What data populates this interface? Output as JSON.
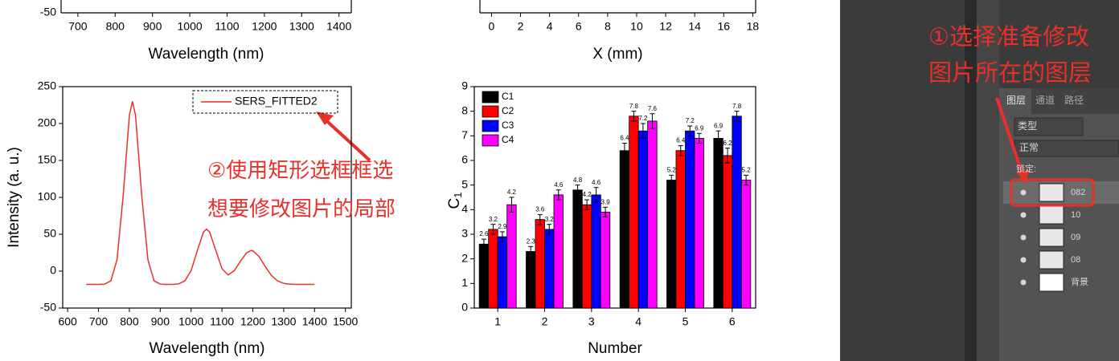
{
  "charts": [
    {
      "type": "axis",
      "yticks": [
        -50
      ],
      "xlim": [
        655,
        1433
      ],
      "xticks": [
        700,
        800,
        900,
        1000,
        1100,
        1200,
        1300,
        1400
      ],
      "x_label": "Wavelength (nm)"
    },
    {
      "type": "axis",
      "xlim": [
        -0.8,
        18.2
      ],
      "xticks": [
        0,
        2,
        4,
        6,
        8,
        10,
        12,
        14,
        16,
        18
      ],
      "x_label": "X (mm)"
    },
    {
      "type": "line",
      "x_label": "Wavelength (nm)",
      "y_label": "Intensity (a. u.)",
      "xlim": [
        584,
        1519
      ],
      "xticks": [
        600,
        700,
        800,
        900,
        1000,
        1100,
        1200,
        1300,
        1400,
        1500
      ],
      "ylim": [
        -50,
        250
      ],
      "yticks": [
        -50,
        0,
        50,
        100,
        150,
        200,
        250
      ],
      "legend": "top-right",
      "series": [
        {
          "name": "SERS_FITTED2",
          "color": "#e8302a",
          "x": [
            660,
            680,
            700,
            720,
            740,
            760,
            780,
            800,
            810,
            820,
            840,
            860,
            880,
            900,
            920,
            940,
            960,
            980,
            1000,
            1020,
            1040,
            1050,
            1060,
            1080,
            1100,
            1120,
            1140,
            1160,
            1180,
            1195,
            1200,
            1220,
            1240,
            1260,
            1280,
            1300,
            1320,
            1340,
            1360,
            1380,
            1400
          ],
          "values": [
            -18,
            -18,
            -18,
            -17.6,
            -13.1,
            15.6,
            102.7,
            210.9,
            230,
            210.9,
            102.7,
            15.6,
            -13.1,
            -17.6,
            -18,
            -18,
            -17.2,
            -13.1,
            0.7,
            27.5,
            53,
            57,
            53.1,
            28.2,
            3.4,
            -5.2,
            0.7,
            13.5,
            24.9,
            28,
            27.6,
            19.9,
            6.4,
            -5.7,
            -13.2,
            -16.5,
            -17.7,
            -18,
            -18,
            -18,
            -18
          ]
        }
      ]
    },
    {
      "type": "bar",
      "x_label": "Number",
      "y_label": "C",
      "y_label_sub": "1",
      "categories": [
        "1",
        "2",
        "3",
        "4",
        "5",
        "6"
      ],
      "ylim": [
        0,
        9
      ],
      "yticks": [
        0,
        1,
        2,
        3,
        4,
        5,
        6,
        7,
        8,
        9
      ],
      "legend": "top-left",
      "series": [
        {
          "name": "C1",
          "color": "#000000",
          "values": [
            2.6,
            2.3,
            4.8,
            6.4,
            5.2,
            6.9
          ],
          "errors": [
            0.2,
            0.2,
            0.2,
            0.3,
            0.2,
            0.3
          ]
        },
        {
          "name": "C2",
          "color": "#ff0000",
          "values": [
            3.2,
            3.6,
            4.2,
            7.8,
            6.4,
            6.2
          ],
          "errors": [
            0.2,
            0.2,
            0.2,
            0.2,
            0.2,
            0.3
          ]
        },
        {
          "name": "C3",
          "color": "#0000ff",
          "values": [
            2.9,
            3.2,
            4.6,
            7.2,
            7.2,
            7.8
          ],
          "errors": [
            0.2,
            0.2,
            0.3,
            0.3,
            0.2,
            0.2
          ]
        },
        {
          "name": "C4",
          "color": "#ff00ff",
          "values": [
            4.2,
            4.6,
            3.9,
            7.6,
            6.9,
            5.2
          ],
          "errors": [
            0.3,
            0.2,
            0.2,
            0.3,
            0.2,
            0.2
          ]
        }
      ]
    }
  ],
  "annotations": {
    "step2": [
      "②使用矩形选框框选",
      "想要修改图片的局部"
    ],
    "step1": [
      "①选择准备修改",
      "图片所在的图层"
    ]
  },
  "layers_panel": {
    "tabs": [
      "图层",
      "通道",
      "路径"
    ],
    "filter": "类型",
    "blend_mode": "正常",
    "lock": "锁定:",
    "layers": [
      "082",
      "10",
      "09",
      "08",
      "背景"
    ]
  }
}
